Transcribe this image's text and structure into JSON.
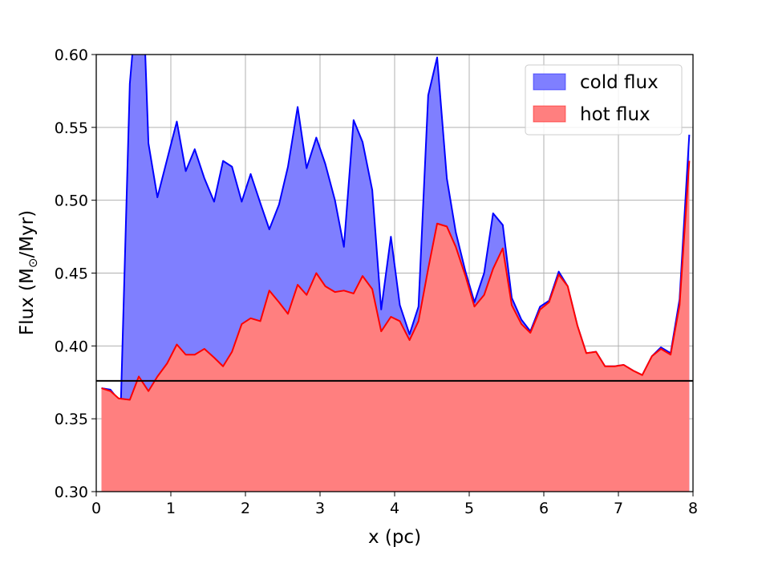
{
  "chart_data": {
    "type": "area",
    "xlabel": "x (pc)",
    "ylabel_main": "Flux (M",
    "ylabel_sub": "⊙",
    "ylabel_tail": "/Myr)",
    "xlim": [
      0,
      8
    ],
    "ylim": [
      0.3,
      0.6
    ],
    "xticks": [
      0,
      1,
      2,
      3,
      4,
      5,
      6,
      7,
      8
    ],
    "xtick_labels": [
      "0",
      "1",
      "2",
      "3",
      "4",
      "5",
      "6",
      "7",
      "8"
    ],
    "yticks": [
      0.3,
      0.35,
      0.4,
      0.45,
      0.5,
      0.55,
      0.6
    ],
    "ytick_labels": [
      "0.30",
      "0.35",
      "0.40",
      "0.45",
      "0.50",
      "0.55",
      "0.60"
    ],
    "grid": true,
    "legend_position": "top-right",
    "reference_line": {
      "y": 0.376,
      "color": "#000000"
    },
    "series": [
      {
        "name": "cold flux",
        "color": "#0000ff",
        "fill": "#7f7fff",
        "points": [
          [
            0.07,
            0.371
          ],
          [
            0.19,
            0.37
          ],
          [
            0.33,
            0.361
          ],
          [
            0.45,
            0.58
          ],
          [
            0.5,
            0.61
          ],
          [
            0.58,
            0.61
          ],
          [
            0.65,
            0.61
          ],
          [
            0.7,
            0.539
          ],
          [
            0.82,
            0.502
          ],
          [
            0.95,
            0.528
          ],
          [
            1.08,
            0.554
          ],
          [
            1.2,
            0.52
          ],
          [
            1.32,
            0.535
          ],
          [
            1.45,
            0.515
          ],
          [
            1.58,
            0.499
          ],
          [
            1.7,
            0.527
          ],
          [
            1.82,
            0.523
          ],
          [
            1.95,
            0.499
          ],
          [
            2.07,
            0.518
          ],
          [
            2.2,
            0.498
          ],
          [
            2.32,
            0.48
          ],
          [
            2.45,
            0.497
          ],
          [
            2.57,
            0.523
          ],
          [
            2.7,
            0.564
          ],
          [
            2.82,
            0.522
          ],
          [
            2.95,
            0.543
          ],
          [
            3.07,
            0.525
          ],
          [
            3.2,
            0.5
          ],
          [
            3.32,
            0.468
          ],
          [
            3.45,
            0.555
          ],
          [
            3.57,
            0.54
          ],
          [
            3.7,
            0.507
          ],
          [
            3.82,
            0.425
          ],
          [
            3.95,
            0.475
          ],
          [
            4.07,
            0.428
          ],
          [
            4.2,
            0.408
          ],
          [
            4.32,
            0.427
          ],
          [
            4.45,
            0.572
          ],
          [
            4.57,
            0.598
          ],
          [
            4.7,
            0.515
          ],
          [
            4.82,
            0.478
          ],
          [
            4.95,
            0.451
          ],
          [
            5.07,
            0.43
          ],
          [
            5.2,
            0.45
          ],
          [
            5.32,
            0.491
          ],
          [
            5.45,
            0.483
          ],
          [
            5.57,
            0.433
          ],
          [
            5.7,
            0.418
          ],
          [
            5.82,
            0.41
          ],
          [
            5.95,
            0.427
          ],
          [
            6.07,
            0.431
          ],
          [
            6.2,
            0.451
          ],
          [
            6.32,
            0.441
          ],
          [
            6.45,
            0.414
          ],
          [
            6.57,
            0.395
          ],
          [
            6.7,
            0.396
          ],
          [
            6.82,
            0.386
          ],
          [
            6.95,
            0.386
          ],
          [
            7.07,
            0.387
          ],
          [
            7.2,
            0.383
          ],
          [
            7.32,
            0.38
          ],
          [
            7.45,
            0.393
          ],
          [
            7.57,
            0.399
          ],
          [
            7.7,
            0.395
          ],
          [
            7.82,
            0.432
          ],
          [
            7.95,
            0.545
          ]
        ]
      },
      {
        "name": "hot flux",
        "color": "#ff0000",
        "fill": "#ff7f7f",
        "points": [
          [
            0.07,
            0.371
          ],
          [
            0.19,
            0.369
          ],
          [
            0.3,
            0.364
          ],
          [
            0.45,
            0.363
          ],
          [
            0.57,
            0.379
          ],
          [
            0.7,
            0.369
          ],
          [
            0.82,
            0.379
          ],
          [
            0.95,
            0.388
          ],
          [
            1.08,
            0.401
          ],
          [
            1.2,
            0.394
          ],
          [
            1.32,
            0.394
          ],
          [
            1.45,
            0.398
          ],
          [
            1.58,
            0.392
          ],
          [
            1.7,
            0.386
          ],
          [
            1.82,
            0.396
          ],
          [
            1.95,
            0.415
          ],
          [
            2.07,
            0.419
          ],
          [
            2.2,
            0.417
          ],
          [
            2.32,
            0.438
          ],
          [
            2.45,
            0.43
          ],
          [
            2.57,
            0.422
          ],
          [
            2.7,
            0.442
          ],
          [
            2.82,
            0.435
          ],
          [
            2.95,
            0.45
          ],
          [
            3.07,
            0.441
          ],
          [
            3.2,
            0.437
          ],
          [
            3.32,
            0.438
          ],
          [
            3.45,
            0.436
          ],
          [
            3.57,
            0.448
          ],
          [
            3.7,
            0.439
          ],
          [
            3.82,
            0.41
          ],
          [
            3.95,
            0.42
          ],
          [
            4.07,
            0.417
          ],
          [
            4.2,
            0.404
          ],
          [
            4.32,
            0.417
          ],
          [
            4.45,
            0.453
          ],
          [
            4.57,
            0.484
          ],
          [
            4.7,
            0.482
          ],
          [
            4.82,
            0.468
          ],
          [
            4.95,
            0.448
          ],
          [
            5.07,
            0.427
          ],
          [
            5.2,
            0.435
          ],
          [
            5.32,
            0.453
          ],
          [
            5.45,
            0.467
          ],
          [
            5.57,
            0.428
          ],
          [
            5.7,
            0.415
          ],
          [
            5.82,
            0.409
          ],
          [
            5.95,
            0.425
          ],
          [
            6.07,
            0.43
          ],
          [
            6.2,
            0.449
          ],
          [
            6.32,
            0.441
          ],
          [
            6.45,
            0.414
          ],
          [
            6.57,
            0.395
          ],
          [
            6.7,
            0.396
          ],
          [
            6.82,
            0.386
          ],
          [
            6.95,
            0.386
          ],
          [
            7.07,
            0.387
          ],
          [
            7.2,
            0.383
          ],
          [
            7.32,
            0.38
          ],
          [
            7.45,
            0.393
          ],
          [
            7.57,
            0.398
          ],
          [
            7.7,
            0.394
          ],
          [
            7.82,
            0.428
          ],
          [
            7.95,
            0.527
          ]
        ]
      }
    ]
  }
}
